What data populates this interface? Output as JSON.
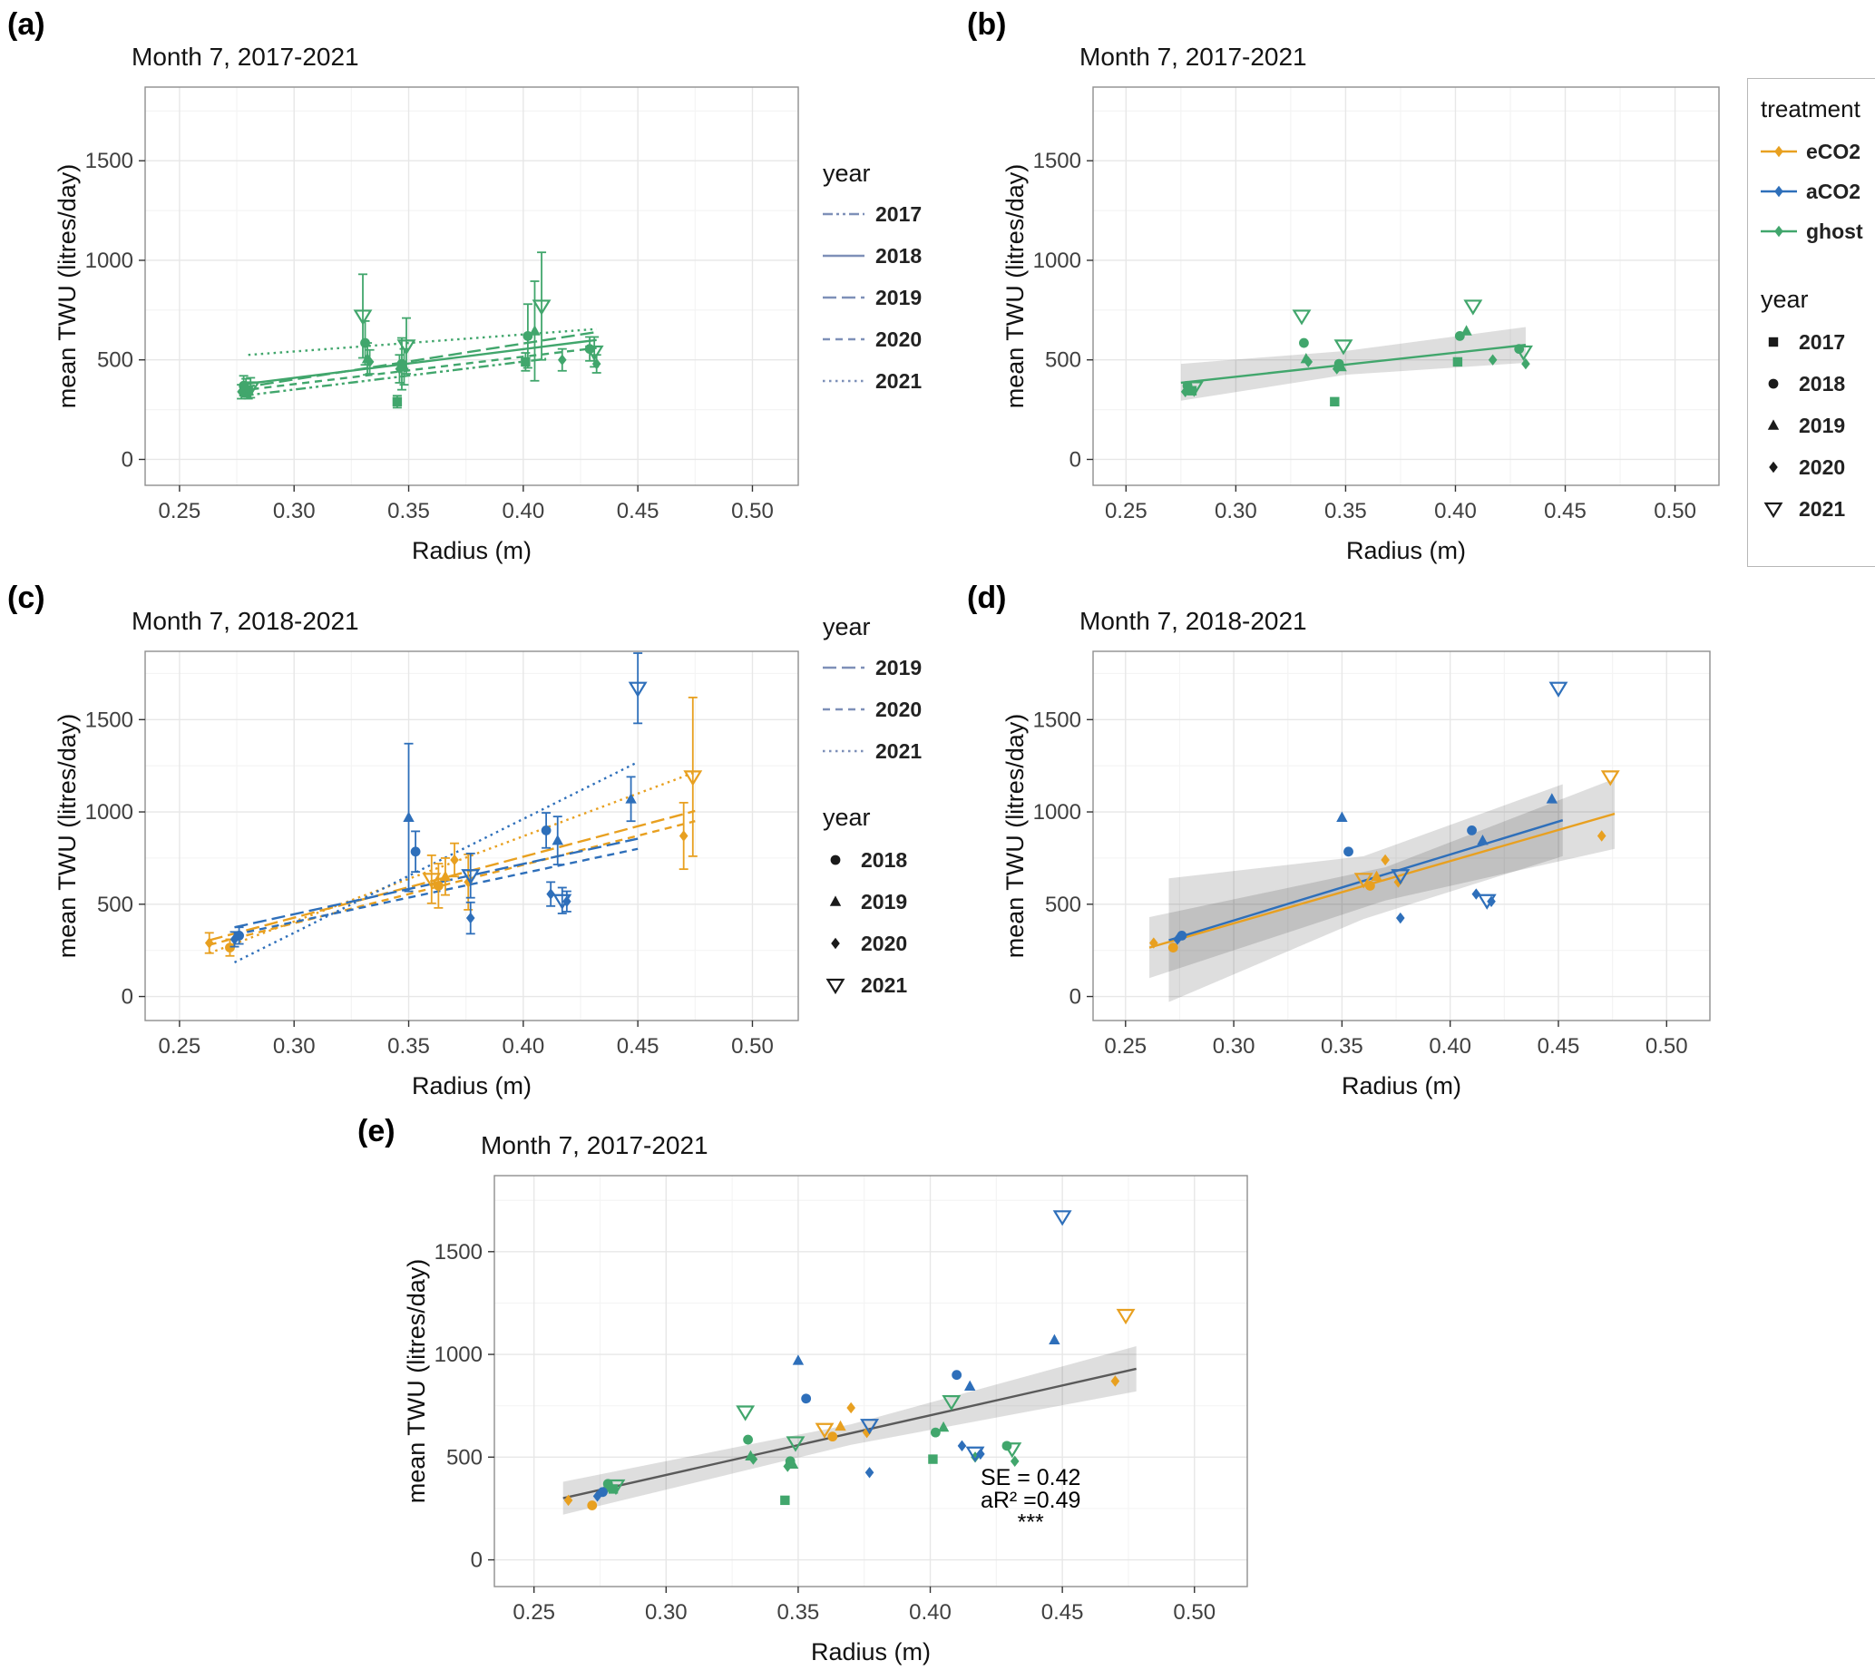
{
  "figure": {
    "panel_letters": {
      "a": "(a)",
      "b": "(b)",
      "c": "(c)",
      "d": "(d)",
      "e": "(e)"
    }
  },
  "colors": {
    "eCO2": "#E8A020",
    "aCO2": "#2E6FBA",
    "ghost": "#41A66C",
    "legend_line": "#7E90B8",
    "shape_black": "#1a1a1a",
    "fit_gray": "#5a5a5a"
  },
  "legends": {
    "panel_a_linetypes": {
      "title": "year",
      "entries": [
        {
          "label": "2017",
          "linetype": "dashdot"
        },
        {
          "label": "2018",
          "linetype": "solid"
        },
        {
          "label": "2019",
          "linetype": "longdash"
        },
        {
          "label": "2020",
          "linetype": "dash"
        },
        {
          "label": "2021",
          "linetype": "dotted"
        }
      ]
    },
    "treatment": {
      "title": "treatment",
      "entries": [
        {
          "label": "eCO2",
          "key": "eCO2"
        },
        {
          "label": "aCO2",
          "key": "aCO2"
        },
        {
          "label": "ghost",
          "key": "ghost"
        }
      ]
    },
    "year_shapes": {
      "title": "year",
      "entries": [
        {
          "label": "2017",
          "shape": "square"
        },
        {
          "label": "2018",
          "shape": "circle"
        },
        {
          "label": "2019",
          "shape": "triangle"
        },
        {
          "label": "2020",
          "shape": "diamond"
        },
        {
          "label": "2021",
          "shape": "tri-down-open"
        }
      ]
    },
    "panel_c_linetypes": {
      "title": "year",
      "entries": [
        {
          "label": "2019",
          "linetype": "longdash"
        },
        {
          "label": "2020",
          "linetype": "dash"
        },
        {
          "label": "2021",
          "linetype": "dotted"
        }
      ]
    },
    "panel_c_shapes": {
      "title": "year",
      "entries": [
        {
          "label": "2018",
          "shape": "circle"
        },
        {
          "label": "2019",
          "shape": "triangle"
        },
        {
          "label": "2020",
          "shape": "diamond"
        },
        {
          "label": "2021",
          "shape": "tri-down-open"
        }
      ]
    }
  },
  "chart_data": {
    "type": "scatter",
    "axes": {
      "xlabel": "Radius (m)",
      "ylabel": "mean TWU (litres/day)",
      "xlim": [
        0.235,
        0.52
      ],
      "ylim": [
        -130,
        1870
      ],
      "xtick_values": [
        0.25,
        0.3,
        0.35,
        0.4,
        0.45,
        0.5
      ],
      "xtick_labels": [
        "0.25",
        "0.30",
        "0.35",
        "0.40",
        "0.45",
        "0.50"
      ],
      "ytick_values": [
        0,
        500,
        1000,
        1500
      ],
      "ytick_labels": [
        "0",
        "500",
        "1000",
        "1500"
      ],
      "grid": true
    },
    "datasets": {
      "ghost": [
        {
          "year": 2017,
          "shape": "square",
          "points": [
            {
              "x": 0.28,
              "y": 345,
              "yerr": 40
            },
            {
              "x": 0.345,
              "y": 290,
              "yerr": 30
            },
            {
              "x": 0.401,
              "y": 490,
              "yerr": 45
            }
          ]
        },
        {
          "year": 2018,
          "shape": "circle",
          "points": [
            {
              "x": 0.278,
              "y": 370,
              "yerr": 50
            },
            {
              "x": 0.331,
              "y": 585,
              "yerr": 110
            },
            {
              "x": 0.347,
              "y": 480,
              "yerr": 130
            },
            {
              "x": 0.402,
              "y": 620,
              "yerr": 160
            },
            {
              "x": 0.429,
              "y": 555,
              "yerr": 60
            }
          ]
        },
        {
          "year": 2019,
          "shape": "triangle",
          "points": [
            {
              "x": 0.279,
              "y": 360,
              "yerr": 45
            },
            {
              "x": 0.332,
              "y": 505,
              "yerr": 80
            },
            {
              "x": 0.348,
              "y": 465,
              "yerr": 90
            },
            {
              "x": 0.405,
              "y": 645,
              "yerr": 250
            }
          ]
        },
        {
          "year": 2020,
          "shape": "diamond",
          "points": [
            {
              "x": 0.277,
              "y": 340,
              "yerr": 35
            },
            {
              "x": 0.333,
              "y": 490,
              "yerr": 60
            },
            {
              "x": 0.346,
              "y": 455,
              "yerr": 70
            },
            {
              "x": 0.417,
              "y": 500,
              "yerr": 55
            },
            {
              "x": 0.432,
              "y": 480,
              "yerr": 45
            }
          ]
        },
        {
          "year": 2021,
          "shape": "tri-down-open",
          "points": [
            {
              "x": 0.281,
              "y": 360,
              "yerr": 50
            },
            {
              "x": 0.33,
              "y": 720,
              "yerr": 210
            },
            {
              "x": 0.349,
              "y": 570,
              "yerr": 140
            },
            {
              "x": 0.408,
              "y": 770,
              "yerr": 270
            },
            {
              "x": 0.431,
              "y": 540,
              "yerr": 75
            }
          ]
        }
      ],
      "eCO2": [
        {
          "year": 2018,
          "shape": "circle",
          "points": [
            {
              "x": 0.272,
              "y": 265,
              "yerr": 45
            },
            {
              "x": 0.363,
              "y": 600,
              "yerr": 120
            }
          ]
        },
        {
          "year": 2019,
          "shape": "triangle",
          "points": [
            {
              "x": 0.366,
              "y": 650,
              "yerr": 100
            }
          ]
        },
        {
          "year": 2020,
          "shape": "diamond",
          "points": [
            {
              "x": 0.263,
              "y": 290,
              "yerr": 55
            },
            {
              "x": 0.37,
              "y": 740,
              "yerr": 90
            },
            {
              "x": 0.376,
              "y": 620,
              "yerr": 150
            },
            {
              "x": 0.47,
              "y": 870,
              "yerr": 180
            }
          ]
        },
        {
          "year": 2021,
          "shape": "tri-down-open",
          "points": [
            {
              "x": 0.36,
              "y": 635,
              "yerr": 130
            },
            {
              "x": 0.474,
              "y": 1190,
              "yerr": 430
            }
          ]
        }
      ],
      "aCO2": [
        {
          "year": 2018,
          "shape": "circle",
          "points": [
            {
              "x": 0.276,
              "y": 330,
              "yerr": 45
            },
            {
              "x": 0.353,
              "y": 785,
              "yerr": 110
            },
            {
              "x": 0.41,
              "y": 900,
              "yerr": 95
            }
          ]
        },
        {
          "year": 2019,
          "shape": "triangle",
          "points": [
            {
              "x": 0.35,
              "y": 970,
              "yerr": 400
            },
            {
              "x": 0.415,
              "y": 845,
              "yerr": 130
            },
            {
              "x": 0.447,
              "y": 1070,
              "yerr": 120
            }
          ]
        },
        {
          "year": 2020,
          "shape": "diamond",
          "points": [
            {
              "x": 0.274,
              "y": 310,
              "yerr": 40
            },
            {
              "x": 0.377,
              "y": 425,
              "yerr": 85
            },
            {
              "x": 0.412,
              "y": 555,
              "yerr": 65
            },
            {
              "x": 0.419,
              "y": 515,
              "yerr": 55
            }
          ]
        },
        {
          "year": 2021,
          "shape": "tri-down-open",
          "points": [
            {
              "x": 0.377,
              "y": 655,
              "yerr": 120
            },
            {
              "x": 0.417,
              "y": 520,
              "yerr": 70
            },
            {
              "x": 0.45,
              "y": 1670,
              "yerr": 190
            }
          ]
        }
      ]
    },
    "panels": [
      {
        "id": "a",
        "title": "Month 7, 2017-2021",
        "datasets": [
          "ghost"
        ],
        "error_bars": true,
        "lines": [
          {
            "year": 2017,
            "color": "ghost",
            "linetype": "dashdot",
            "x1": 0.278,
            "y1": 320,
            "x2": 0.41,
            "y2": 505
          },
          {
            "year": 2018,
            "color": "ghost",
            "linetype": "solid",
            "x1": 0.276,
            "y1": 375,
            "x2": 0.432,
            "y2": 600
          },
          {
            "year": 2019,
            "color": "ghost",
            "linetype": "longdash",
            "x1": 0.277,
            "y1": 360,
            "x2": 0.432,
            "y2": 640
          },
          {
            "year": 2020,
            "color": "ghost",
            "linetype": "dash",
            "x1": 0.276,
            "y1": 345,
            "x2": 0.432,
            "y2": 560
          },
          {
            "year": 2021,
            "color": "ghost",
            "linetype": "dotted",
            "x1": 0.28,
            "y1": 525,
            "x2": 0.432,
            "y2": 655
          }
        ]
      },
      {
        "id": "b",
        "title": "Month 7, 2017-2021",
        "datasets": [
          "ghost"
        ],
        "error_bars": false,
        "ribbons": [
          {
            "upper": [
              [
                0.275,
                480
              ],
              [
                0.35,
                545
              ],
              [
                0.432,
                665
              ]
            ],
            "lower": [
              [
                0.275,
                295
              ],
              [
                0.35,
                425
              ],
              [
                0.432,
                485
              ]
            ]
          }
        ],
        "lines": [
          {
            "color": "ghost",
            "linetype": "solid",
            "x1": 0.275,
            "y1": 385,
            "x2": 0.432,
            "y2": 575
          }
        ]
      },
      {
        "id": "c",
        "title": "Month 7, 2018-2021",
        "datasets": [
          "eCO2",
          "aCO2"
        ],
        "error_bars": true,
        "lines": [
          {
            "year": 2019,
            "color": "eCO2",
            "linetype": "longdash",
            "x1": 0.263,
            "y1": 305,
            "x2": 0.475,
            "y2": 1005
          },
          {
            "year": 2020,
            "color": "eCO2",
            "linetype": "dash",
            "x1": 0.263,
            "y1": 280,
            "x2": 0.475,
            "y2": 950
          },
          {
            "year": 2021,
            "color": "eCO2",
            "linetype": "dotted",
            "x1": 0.263,
            "y1": 235,
            "x2": 0.475,
            "y2": 1215
          },
          {
            "year": 2019,
            "color": "aCO2",
            "linetype": "longdash",
            "x1": 0.274,
            "y1": 375,
            "x2": 0.45,
            "y2": 855
          },
          {
            "year": 2020,
            "color": "aCO2",
            "linetype": "dash",
            "x1": 0.274,
            "y1": 335,
            "x2": 0.45,
            "y2": 800
          },
          {
            "year": 2021,
            "color": "aCO2",
            "linetype": "dotted",
            "x1": 0.274,
            "y1": 185,
            "x2": 0.45,
            "y2": 1270
          }
        ]
      },
      {
        "id": "d",
        "title": "Month 7, 2018-2021",
        "datasets": [
          "eCO2",
          "aCO2"
        ],
        "error_bars": false,
        "ribbons": [
          {
            "upper": [
              [
                0.261,
                430
              ],
              [
                0.37,
                700
              ],
              [
                0.476,
                1180
              ]
            ],
            "lower": [
              [
                0.261,
                100
              ],
              [
                0.37,
                520
              ],
              [
                0.476,
                800
              ]
            ]
          },
          {
            "upper": [
              [
                0.27,
                640
              ],
              [
                0.36,
                760
              ],
              [
                0.452,
                1150
              ]
            ],
            "lower": [
              [
                0.27,
                -30
              ],
              [
                0.36,
                420
              ],
              [
                0.452,
                760
              ]
            ]
          }
        ],
        "lines": [
          {
            "color": "eCO2",
            "linetype": "solid",
            "x1": 0.261,
            "y1": 265,
            "x2": 0.476,
            "y2": 990
          },
          {
            "color": "aCO2",
            "linetype": "solid",
            "x1": 0.27,
            "y1": 305,
            "x2": 0.452,
            "y2": 955
          }
        ]
      },
      {
        "id": "e",
        "title": "Month 7, 2017-2021",
        "datasets": [
          "ghost",
          "eCO2",
          "aCO2"
        ],
        "error_bars": false,
        "ribbons": [
          {
            "upper": [
              [
                0.261,
                380
              ],
              [
                0.37,
                660
              ],
              [
                0.478,
                1040
              ]
            ],
            "lower": [
              [
                0.261,
                220
              ],
              [
                0.37,
                560
              ],
              [
                0.478,
                820
              ]
            ]
          }
        ],
        "lines": [
          {
            "color": "fit_gray",
            "linetype": "solid",
            "x1": 0.261,
            "y1": 300,
            "x2": 0.478,
            "y2": 930
          }
        ],
        "annotation": {
          "x": 0.438,
          "ys": [
            365,
            255,
            145
          ],
          "lines": [
            "SE = 0.42",
            "aR² =0.49",
            "***"
          ]
        }
      }
    ]
  }
}
